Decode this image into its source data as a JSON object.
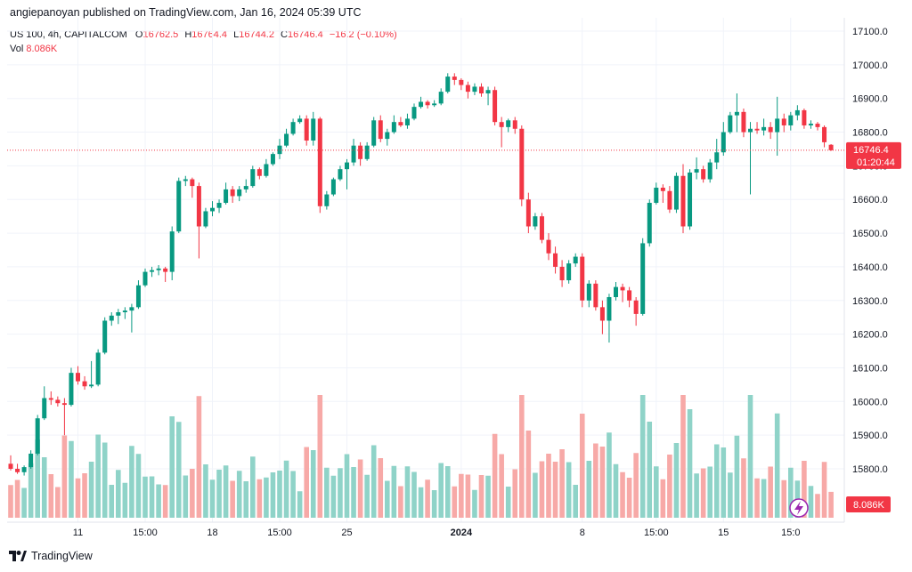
{
  "header": {
    "published": "angiepanoyan published on TradingView.com, Jan 16, 2024 05:39 UTC"
  },
  "legend": {
    "symbol": "US 100, 4h, CAPITALCOM",
    "o_label": "O",
    "o_value": "16762.5",
    "h_label": "H",
    "h_value": "16764.4",
    "l_label": "L",
    "l_value": "16744.2",
    "c_label": "C",
    "c_value": "16746.4",
    "change": "−16.2 (−0.10%)",
    "vol_label": "Vol",
    "vol_value": "8.086K"
  },
  "brand": {
    "name": "TradingView",
    "icon": "tradingview-logo-icon"
  },
  "colors": {
    "up": "#089981",
    "down": "#f23645",
    "vol_up": "#8fd3c8",
    "vol_down": "#f7a9a7",
    "grid": "#f0f3fa",
    "price_line": "#f23645"
  },
  "chart_data": {
    "type": "candlestick",
    "timeframe": "4h",
    "y_ticks": [
      15800,
      15900,
      16000,
      16100,
      16200,
      16300,
      16400,
      16500,
      16600,
      16700,
      16800,
      16900,
      17000,
      17100
    ],
    "ylim": [
      15650,
      17140
    ],
    "x_ticks": [
      {
        "label": "11",
        "index": 10,
        "bold": false
      },
      {
        "label": "15:00",
        "index": 20,
        "bold": false
      },
      {
        "label": "18",
        "index": 30,
        "bold": false
      },
      {
        "label": "15:00",
        "index": 40,
        "bold": false
      },
      {
        "label": "25",
        "index": 50,
        "bold": false
      },
      {
        "label": "2024",
        "index": 67,
        "bold": true
      },
      {
        "label": "8",
        "index": 85,
        "bold": false
      },
      {
        "label": "15:00",
        "index": 96,
        "bold": false
      },
      {
        "label": "15",
        "index": 106,
        "bold": false
      },
      {
        "label": "15:0",
        "index": 116,
        "bold": false
      }
    ],
    "last_price": "16746.4",
    "last_price_value": 16746.4,
    "countdown": "01:20:44",
    "volume_label": "8.086K",
    "candles": [
      [
        15815,
        15840,
        15795,
        15800
      ],
      [
        15800,
        15815,
        15785,
        15790
      ],
      [
        15790,
        15810,
        15780,
        15805
      ],
      [
        15805,
        15855,
        15800,
        15845
      ],
      [
        15845,
        15960,
        15840,
        15950
      ],
      [
        15950,
        16045,
        15945,
        16010
      ],
      [
        16010,
        16030,
        15990,
        16005
      ],
      [
        16005,
        16015,
        15985,
        15995
      ],
      [
        15995,
        16010,
        15900,
        15990
      ],
      [
        15990,
        16100,
        15985,
        16085
      ],
      [
        16085,
        16105,
        16050,
        16060
      ],
      [
        16060,
        16075,
        16035,
        16045
      ],
      [
        16045,
        16120,
        16040,
        16050
      ],
      [
        16050,
        16155,
        16045,
        16145
      ],
      [
        16145,
        16250,
        16140,
        16240
      ],
      [
        16240,
        16265,
        16225,
        16255
      ],
      [
        16255,
        16275,
        16230,
        16265
      ],
      [
        16265,
        16280,
        16245,
        16270
      ],
      [
        16270,
        16290,
        16205,
        16280
      ],
      [
        16280,
        16360,
        16275,
        16345
      ],
      [
        16345,
        16395,
        16340,
        16385
      ],
      [
        16385,
        16400,
        16370,
        16390
      ],
      [
        16390,
        16405,
        16375,
        16395
      ],
      [
        16395,
        16400,
        16355,
        16385
      ],
      [
        16385,
        16520,
        16360,
        16505
      ],
      [
        16505,
        16665,
        16500,
        16655
      ],
      [
        16655,
        16670,
        16640,
        16660
      ],
      [
        16660,
        16665,
        16605,
        16640
      ],
      [
        16640,
        16650,
        16425,
        16520
      ],
      [
        16520,
        16575,
        16515,
        16565
      ],
      [
        16565,
        16595,
        16550,
        16575
      ],
      [
        16575,
        16600,
        16560,
        16590
      ],
      [
        16590,
        16650,
        16585,
        16630
      ],
      [
        16630,
        16640,
        16590,
        16610
      ],
      [
        16610,
        16640,
        16595,
        16630
      ],
      [
        16630,
        16660,
        16620,
        16640
      ],
      [
        16640,
        16700,
        16635,
        16690
      ],
      [
        16690,
        16695,
        16660,
        16670
      ],
      [
        16670,
        16720,
        16665,
        16705
      ],
      [
        16705,
        16740,
        16700,
        16735
      ],
      [
        16735,
        16780,
        16720,
        16760
      ],
      [
        16760,
        16810,
        16755,
        16795
      ],
      [
        16795,
        16840,
        16790,
        16830
      ],
      [
        16830,
        16850,
        16825,
        16840
      ],
      [
        16840,
        16850,
        16760,
        16775
      ],
      [
        16775,
        16860,
        16760,
        16840
      ],
      [
        16840,
        16845,
        16560,
        16580
      ],
      [
        16580,
        16625,
        16570,
        16615
      ],
      [
        16615,
        16665,
        16610,
        16660
      ],
      [
        16660,
        16700,
        16655,
        16690
      ],
      [
        16690,
        16720,
        16630,
        16710
      ],
      [
        16710,
        16780,
        16700,
        16760
      ],
      [
        16760,
        16770,
        16700,
        16720
      ],
      [
        16720,
        16770,
        16715,
        16760
      ],
      [
        16760,
        16845,
        16755,
        16835
      ],
      [
        16835,
        16850,
        16770,
        16780
      ],
      [
        16780,
        16810,
        16760,
        16800
      ],
      [
        16800,
        16850,
        16795,
        16830
      ],
      [
        16830,
        16845,
        16815,
        16820
      ],
      [
        16820,
        16855,
        16810,
        16840
      ],
      [
        16840,
        16885,
        16835,
        16875
      ],
      [
        16875,
        16905,
        16870,
        16890
      ],
      [
        16890,
        16895,
        16870,
        16880
      ],
      [
        16880,
        16895,
        16875,
        16885
      ],
      [
        16885,
        16930,
        16880,
        16920
      ],
      [
        16920,
        16975,
        16915,
        16965
      ],
      [
        16965,
        16975,
        16940,
        16955
      ],
      [
        16955,
        16960,
        16925,
        16940
      ],
      [
        16940,
        16950,
        16900,
        16920
      ],
      [
        16920,
        16945,
        16910,
        16935
      ],
      [
        16935,
        16945,
        16905,
        16915
      ],
      [
        16915,
        16935,
        16880,
        16925
      ],
      [
        16925,
        16935,
        16820,
        16830
      ],
      [
        16830,
        16845,
        16755,
        16815
      ],
      [
        16815,
        16840,
        16800,
        16835
      ],
      [
        16835,
        16845,
        16795,
        16810
      ],
      [
        16810,
        16820,
        16580,
        16600
      ],
      [
        16600,
        16620,
        16500,
        16520
      ],
      [
        16520,
        16560,
        16510,
        16550
      ],
      [
        16550,
        16560,
        16470,
        16480
      ],
      [
        16480,
        16500,
        16420,
        16440
      ],
      [
        16440,
        16460,
        16380,
        16400
      ],
      [
        16400,
        16420,
        16340,
        16360
      ],
      [
        16360,
        16420,
        16350,
        16410
      ],
      [
        16410,
        16440,
        16400,
        16430
      ],
      [
        16430,
        16440,
        16280,
        16300
      ],
      [
        16300,
        16360,
        16280,
        16350
      ],
      [
        16350,
        16360,
        16270,
        16280
      ],
      [
        16280,
        16300,
        16200,
        16240
      ],
      [
        16240,
        16320,
        16175,
        16310
      ],
      [
        16310,
        16355,
        16300,
        16340
      ],
      [
        16340,
        16350,
        16295,
        16330
      ],
      [
        16330,
        16340,
        16280,
        16300
      ],
      [
        16300,
        16310,
        16225,
        16260
      ],
      [
        16260,
        16485,
        16255,
        16470
      ],
      [
        16470,
        16600,
        16460,
        16590
      ],
      [
        16590,
        16650,
        16585,
        16635
      ],
      [
        16635,
        16645,
        16590,
        16625
      ],
      [
        16625,
        16640,
        16560,
        16570
      ],
      [
        16570,
        16680,
        16560,
        16670
      ],
      [
        16670,
        16705,
        16500,
        16520
      ],
      [
        16520,
        16690,
        16510,
        16680
      ],
      [
        16680,
        16725,
        16660,
        16690
      ],
      [
        16690,
        16700,
        16650,
        16660
      ],
      [
        16660,
        16720,
        16650,
        16710
      ],
      [
        16710,
        16780,
        16690,
        16740
      ],
      [
        16740,
        16830,
        16730,
        16800
      ],
      [
        16800,
        16860,
        16795,
        16850
      ],
      [
        16850,
        16915,
        16800,
        16860
      ],
      [
        16860,
        16870,
        16785,
        16800
      ],
      [
        16800,
        16830,
        16615,
        16810
      ],
      [
        16810,
        16830,
        16795,
        16805
      ],
      [
        16805,
        16840,
        16790,
        16815
      ],
      [
        16815,
        16830,
        16780,
        16800
      ],
      [
        16800,
        16905,
        16730,
        16840
      ],
      [
        16840,
        16855,
        16800,
        16820
      ],
      [
        16820,
        16860,
        16805,
        16850
      ],
      [
        16850,
        16880,
        16835,
        16865
      ],
      [
        16865,
        16870,
        16810,
        16820
      ],
      [
        16820,
        16835,
        16810,
        16825
      ],
      [
        16825,
        16830,
        16805,
        16815
      ],
      [
        16815,
        16820,
        16755,
        16770
      ],
      [
        16762.5,
        16764.4,
        16744.2,
        16746.4
      ]
    ]
  }
}
